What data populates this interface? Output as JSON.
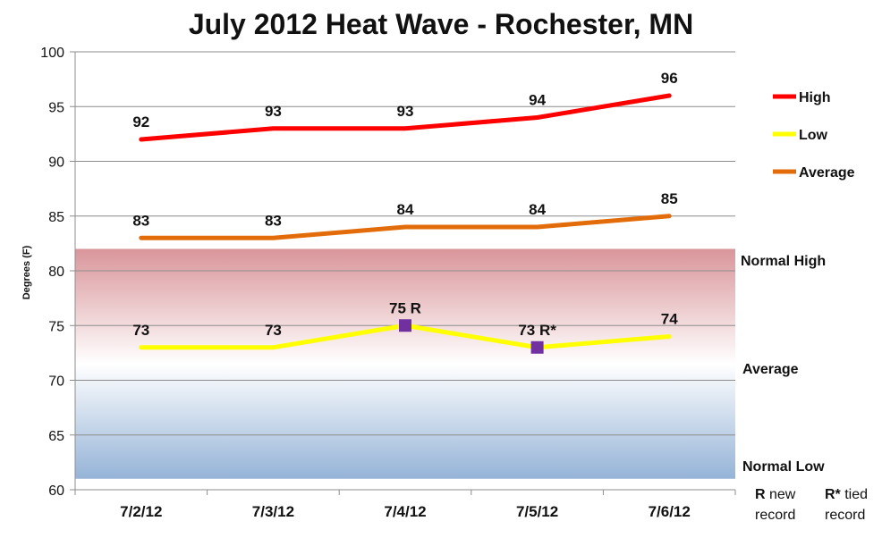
{
  "chart_data": {
    "type": "line",
    "title": "July 2012 Heat Wave - Rochester, MN",
    "xlabel": "",
    "ylabel": "Degrees (F)",
    "ylim": [
      60,
      100
    ],
    "ytick_step": 5,
    "grid": true,
    "legend_position": "right",
    "categories": [
      "7/2/12",
      "7/3/12",
      "7/4/12",
      "7/5/12",
      "7/6/12"
    ],
    "series": [
      {
        "name": "High",
        "color": "#ff0000",
        "values": [
          92,
          93,
          93,
          94,
          96
        ],
        "labels": [
          "92",
          "93",
          "93",
          "94",
          "96"
        ]
      },
      {
        "name": "Low",
        "color": "#ffff00",
        "values": [
          73,
          73,
          75,
          73,
          74
        ],
        "labels": [
          "73",
          "73",
          "75 R",
          "73 R*",
          "74"
        ],
        "record_markers": [
          2,
          3
        ],
        "marker_color": "#7030a0"
      },
      {
        "name": "Average",
        "color": "#e36c0a",
        "values": [
          83,
          83,
          84,
          84,
          85
        ],
        "labels": [
          "83",
          "83",
          "84",
          "84",
          "85"
        ]
      }
    ],
    "normal_band": {
      "high": 82,
      "average": 72,
      "low": 61,
      "high_color": "#d9959a",
      "mid_color": "#ffffff",
      "low_color": "#95b3d7",
      "labels": {
        "high": "Normal High",
        "average": "Average",
        "low": "Normal Low"
      }
    },
    "notes": {
      "new_record": {
        "symbol": "R",
        "line1": "new",
        "line2": "record"
      },
      "tied_record": {
        "symbol": "R*",
        "line1": "tied",
        "line2": "record"
      }
    }
  }
}
